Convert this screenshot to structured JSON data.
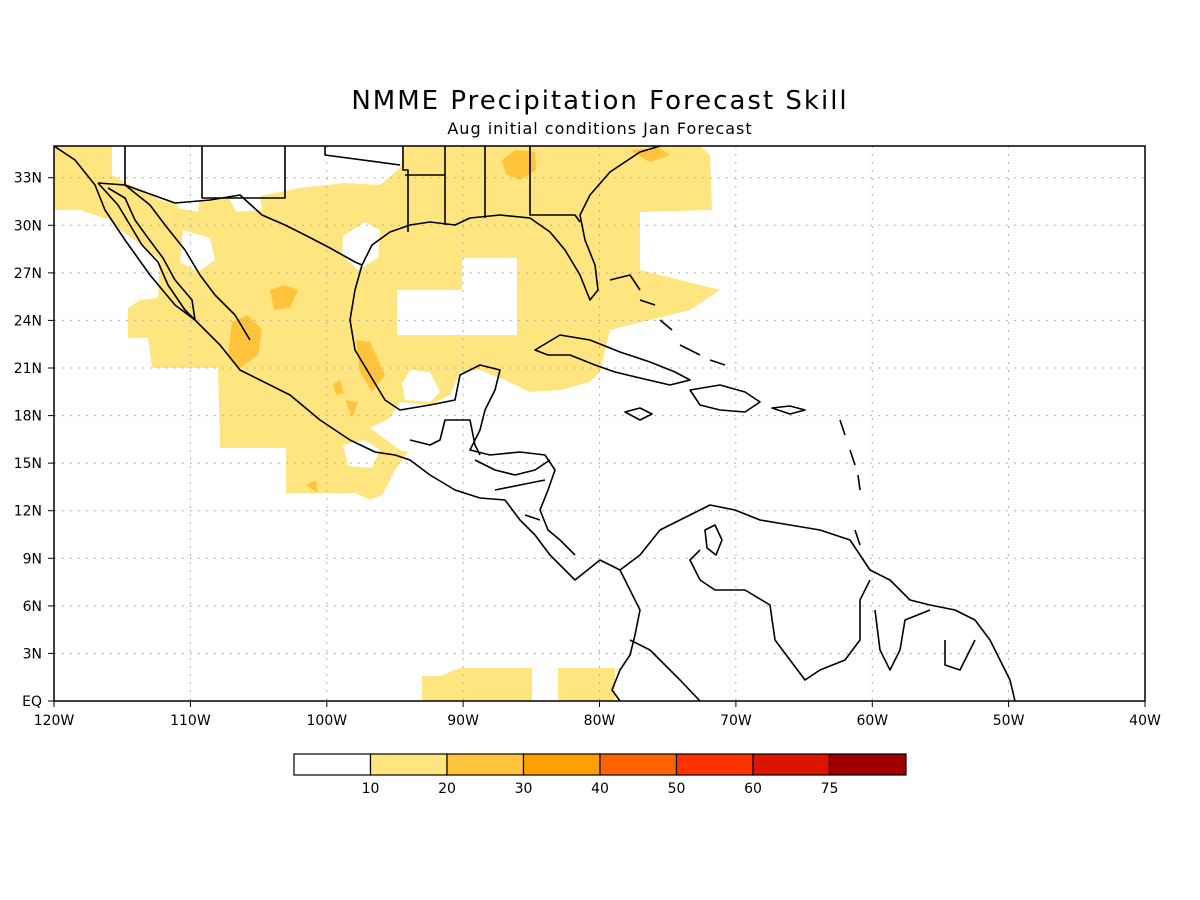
{
  "title": "NMME Precipitation Forecast Skill",
  "subtitle": "Aug initial conditions  Jan Forecast",
  "map": {
    "lon_range": [
      -120,
      -40
    ],
    "lat_range": [
      0,
      35
    ],
    "x_ticks": [
      "120W",
      "110W",
      "100W",
      "90W",
      "80W",
      "70W",
      "60W",
      "50W",
      "40W"
    ],
    "y_ticks": [
      "EQ",
      "3N",
      "6N",
      "9N",
      "12N",
      "15N",
      "18N",
      "21N",
      "24N",
      "27N",
      "30N",
      "33N"
    ],
    "grid": true
  },
  "colorbar": {
    "labels": [
      "10",
      "20",
      "30",
      "40",
      "50",
      "60",
      "75"
    ],
    "colors": [
      "#ffffff",
      "#ffe57f",
      "#ffc43c",
      "#ffa000",
      "#ff6400",
      "#ff3200",
      "#dc1400",
      "#a00000"
    ]
  },
  "colors": {
    "skill_10_20": "#ffe57f",
    "skill_20_30": "#ffc43c"
  }
}
